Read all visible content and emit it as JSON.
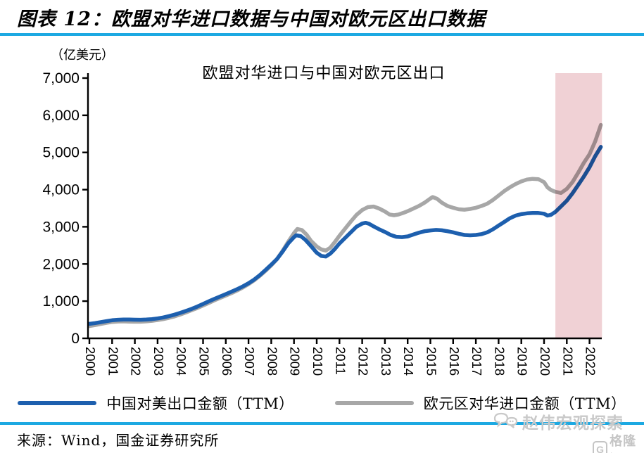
{
  "header": {
    "title": "图表 12：欧盟对华进口数据与中国对欧元区出口数据"
  },
  "footer": {
    "source": "来源：Wind，国金证券研究所"
  },
  "watermarks": {
    "explore": "赵伟宏观探索",
    "gelonghui": "格隆汇",
    "gelonghui_initial": "G"
  },
  "colors": {
    "accent_rule": "#1ca9e2",
    "watermark": "#c9c9c9",
    "watermark2": "#c5c5c5",
    "axis": "#000000"
  },
  "chart_data": {
    "type": "line",
    "title": "欧盟对华进口与中国对欧元区出口",
    "unit_label": "（亿美元）",
    "xlabel": "",
    "ylabel": "亿美元",
    "ylim": [
      0,
      7000
    ],
    "xlim": [
      2000,
      2022.6
    ],
    "grid": false,
    "legend_position": "bottom",
    "y_ticks": [
      {
        "value": 0,
        "label": "0"
      },
      {
        "value": 1000,
        "label": "1,000"
      },
      {
        "value": 2000,
        "label": "2,000"
      },
      {
        "value": 3000,
        "label": "3,000"
      },
      {
        "value": 4000,
        "label": "4,000"
      },
      {
        "value": 5000,
        "label": "5,000"
      },
      {
        "value": 6000,
        "label": "6,000"
      },
      {
        "value": 7000,
        "label": "7,000"
      }
    ],
    "x_ticks": [
      "2000",
      "2001",
      "2002",
      "2003",
      "2004",
      "2005",
      "2006",
      "2007",
      "2008",
      "2009",
      "2010",
      "2011",
      "2012",
      "2013",
      "2014",
      "2015",
      "2016",
      "2017",
      "2018",
      "2019",
      "2020",
      "2021",
      "2022"
    ],
    "highlight_region": {
      "x_start": 2020.5,
      "x_end": 2022.55,
      "color": "#f0d1d5"
    },
    "series": [
      {
        "name": "中国对美出口金额（TTM）",
        "color": "#1d5fae",
        "points": [
          [
            2000.0,
            390
          ],
          [
            2000.25,
            410
          ],
          [
            2000.5,
            435
          ],
          [
            2000.75,
            462
          ],
          [
            2001.0,
            487
          ],
          [
            2001.25,
            500
          ],
          [
            2001.5,
            506
          ],
          [
            2001.75,
            505
          ],
          [
            2002.0,
            501
          ],
          [
            2002.25,
            500
          ],
          [
            2002.5,
            506
          ],
          [
            2002.75,
            517
          ],
          [
            2003.0,
            535
          ],
          [
            2003.25,
            562
          ],
          [
            2003.5,
            597
          ],
          [
            2003.75,
            638
          ],
          [
            2004.0,
            686
          ],
          [
            2004.25,
            737
          ],
          [
            2004.5,
            792
          ],
          [
            2004.75,
            856
          ],
          [
            2005.0,
            926
          ],
          [
            2005.25,
            996
          ],
          [
            2005.5,
            1062
          ],
          [
            2005.75,
            1126
          ],
          [
            2006.0,
            1190
          ],
          [
            2006.25,
            1256
          ],
          [
            2006.5,
            1322
          ],
          [
            2006.75,
            1396
          ],
          [
            2007.0,
            1482
          ],
          [
            2007.25,
            1582
          ],
          [
            2007.5,
            1702
          ],
          [
            2007.75,
            1838
          ],
          [
            2008.0,
            1982
          ],
          [
            2008.25,
            2132
          ],
          [
            2008.5,
            2332
          ],
          [
            2008.75,
            2556
          ],
          [
            2009.0,
            2722
          ],
          [
            2009.1,
            2772
          ],
          [
            2009.3,
            2748
          ],
          [
            2009.5,
            2650
          ],
          [
            2009.75,
            2480
          ],
          [
            2010.0,
            2302
          ],
          [
            2010.2,
            2215
          ],
          [
            2010.4,
            2200
          ],
          [
            2010.6,
            2282
          ],
          [
            2010.8,
            2405
          ],
          [
            2011.0,
            2552
          ],
          [
            2011.25,
            2702
          ],
          [
            2011.5,
            2852
          ],
          [
            2011.75,
            3002
          ],
          [
            2012.0,
            3088
          ],
          [
            2012.15,
            3108
          ],
          [
            2012.3,
            3082
          ],
          [
            2012.5,
            3012
          ],
          [
            2012.75,
            2932
          ],
          [
            2013.0,
            2862
          ],
          [
            2013.25,
            2782
          ],
          [
            2013.5,
            2732
          ],
          [
            2013.75,
            2722
          ],
          [
            2014.0,
            2742
          ],
          [
            2014.25,
            2792
          ],
          [
            2014.5,
            2842
          ],
          [
            2014.75,
            2882
          ],
          [
            2015.0,
            2902
          ],
          [
            2015.25,
            2916
          ],
          [
            2015.5,
            2906
          ],
          [
            2015.75,
            2882
          ],
          [
            2016.0,
            2852
          ],
          [
            2016.25,
            2812
          ],
          [
            2016.5,
            2782
          ],
          [
            2016.75,
            2772
          ],
          [
            2017.0,
            2782
          ],
          [
            2017.25,
            2802
          ],
          [
            2017.5,
            2852
          ],
          [
            2017.75,
            2932
          ],
          [
            2018.0,
            3032
          ],
          [
            2018.25,
            3132
          ],
          [
            2018.5,
            3232
          ],
          [
            2018.75,
            3302
          ],
          [
            2019.0,
            3342
          ],
          [
            2019.25,
            3362
          ],
          [
            2019.5,
            3372
          ],
          [
            2019.75,
            3372
          ],
          [
            2020.0,
            3352
          ],
          [
            2020.15,
            3302
          ],
          [
            2020.3,
            3322
          ],
          [
            2020.5,
            3402
          ],
          [
            2020.75,
            3552
          ],
          [
            2021.0,
            3702
          ],
          [
            2021.25,
            3902
          ],
          [
            2021.5,
            4122
          ],
          [
            2021.75,
            4352
          ],
          [
            2022.0,
            4602
          ],
          [
            2022.25,
            4902
          ],
          [
            2022.5,
            5150
          ]
        ]
      },
      {
        "name": "欧元区对华进口金额（TTM）",
        "color": "#a7a7a7",
        "points": [
          [
            2000.0,
            330
          ],
          [
            2000.25,
            356
          ],
          [
            2000.5,
            386
          ],
          [
            2000.75,
            416
          ],
          [
            2001.0,
            441
          ],
          [
            2001.25,
            452
          ],
          [
            2001.5,
            456
          ],
          [
            2001.75,
            451
          ],
          [
            2002.0,
            446
          ],
          [
            2002.25,
            446
          ],
          [
            2002.5,
            456
          ],
          [
            2002.75,
            471
          ],
          [
            2003.0,
            491
          ],
          [
            2003.25,
            516
          ],
          [
            2003.5,
            551
          ],
          [
            2003.75,
            591
          ],
          [
            2004.0,
            641
          ],
          [
            2004.25,
            696
          ],
          [
            2004.5,
            756
          ],
          [
            2004.75,
            816
          ],
          [
            2005.0,
            881
          ],
          [
            2005.25,
            951
          ],
          [
            2005.5,
            1021
          ],
          [
            2005.75,
            1086
          ],
          [
            2006.0,
            1151
          ],
          [
            2006.25,
            1216
          ],
          [
            2006.5,
            1286
          ],
          [
            2006.75,
            1366
          ],
          [
            2007.0,
            1456
          ],
          [
            2007.25,
            1561
          ],
          [
            2007.5,
            1681
          ],
          [
            2007.75,
            1816
          ],
          [
            2008.0,
            1961
          ],
          [
            2008.25,
            2131
          ],
          [
            2008.5,
            2351
          ],
          [
            2008.75,
            2601
          ],
          [
            2009.0,
            2831
          ],
          [
            2009.15,
            2941
          ],
          [
            2009.35,
            2911
          ],
          [
            2009.55,
            2791
          ],
          [
            2009.75,
            2621
          ],
          [
            2010.0,
            2471
          ],
          [
            2010.2,
            2391
          ],
          [
            2010.4,
            2361
          ],
          [
            2010.6,
            2441
          ],
          [
            2010.8,
            2591
          ],
          [
            2011.0,
            2761
          ],
          [
            2011.25,
            2951
          ],
          [
            2011.5,
            3141
          ],
          [
            2011.75,
            3321
          ],
          [
            2012.0,
            3451
          ],
          [
            2012.25,
            3531
          ],
          [
            2012.5,
            3546
          ],
          [
            2012.75,
            3491
          ],
          [
            2013.0,
            3411
          ],
          [
            2013.2,
            3331
          ],
          [
            2013.4,
            3311
          ],
          [
            2013.6,
            3331
          ],
          [
            2013.8,
            3371
          ],
          [
            2014.0,
            3421
          ],
          [
            2014.25,
            3491
          ],
          [
            2014.5,
            3561
          ],
          [
            2014.75,
            3651
          ],
          [
            2015.0,
            3761
          ],
          [
            2015.1,
            3801
          ],
          [
            2015.3,
            3751
          ],
          [
            2015.5,
            3651
          ],
          [
            2015.75,
            3561
          ],
          [
            2016.0,
            3511
          ],
          [
            2016.25,
            3471
          ],
          [
            2016.5,
            3461
          ],
          [
            2016.75,
            3481
          ],
          [
            2017.0,
            3511
          ],
          [
            2017.25,
            3561
          ],
          [
            2017.5,
            3621
          ],
          [
            2017.75,
            3721
          ],
          [
            2018.0,
            3841
          ],
          [
            2018.25,
            3961
          ],
          [
            2018.5,
            4061
          ],
          [
            2018.75,
            4151
          ],
          [
            2019.0,
            4221
          ],
          [
            2019.25,
            4271
          ],
          [
            2019.5,
            4291
          ],
          [
            2019.75,
            4281
          ],
          [
            2020.0,
            4201
          ],
          [
            2020.15,
            4061
          ],
          [
            2020.3,
            3991
          ],
          [
            2020.5,
            3941
          ],
          [
            2020.75,
            3911
          ],
          [
            2021.0,
            4021
          ],
          [
            2021.25,
            4201
          ],
          [
            2021.5,
            4451
          ],
          [
            2021.75,
            4721
          ],
          [
            2022.0,
            4951
          ],
          [
            2022.25,
            5301
          ],
          [
            2022.5,
            5740
          ]
        ]
      }
    ]
  }
}
